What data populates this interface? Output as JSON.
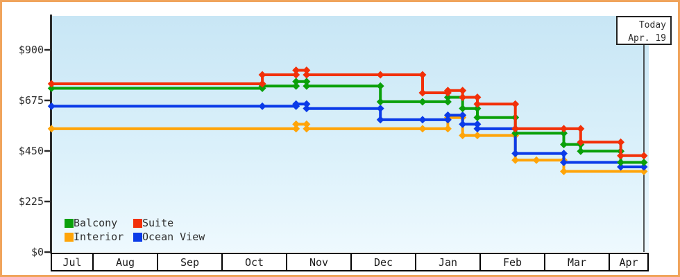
{
  "frame": {
    "border_color": "#f0a45c"
  },
  "today_box": {
    "title": "Today",
    "date": "Apr. 19"
  },
  "y_axis": {
    "tick_labels": [
      "$0",
      "$225",
      "$450",
      "$675",
      "$900"
    ],
    "tick_values": [
      0,
      225,
      450,
      675,
      900
    ]
  },
  "x_axis": {
    "months": [
      "Jul",
      "Aug",
      "Sep",
      "Oct",
      "Nov",
      "Dec",
      "Jan",
      "Feb",
      "Mar",
      "Apr"
    ]
  },
  "chart_data": {
    "type": "line",
    "step": true,
    "title": "",
    "xlabel": "",
    "ylabel": "",
    "currency": "$",
    "ylim": [
      0,
      1050
    ],
    "y_ticks": [
      0,
      225,
      450,
      675,
      900
    ],
    "x_range": [
      "Jul 12",
      "Apr 19"
    ],
    "today": "Apr 19",
    "grid": false,
    "legend_position": "bottom-left-inside",
    "marker": "diamond",
    "series": [
      {
        "name": "Balcony",
        "color": "#0aa00a",
        "points": [
          [
            "Jul 12",
            729
          ],
          [
            "Oct 20",
            739
          ],
          [
            "Nov 5",
            759
          ],
          [
            "Nov 10",
            739
          ],
          [
            "Dec 15",
            669
          ],
          [
            "Jan 4",
            669
          ],
          [
            "Jan 16",
            689
          ],
          [
            "Jan 23",
            639
          ],
          [
            "Jan 30",
            599
          ],
          [
            "Feb 17",
            529
          ],
          [
            "Mar 12",
            479
          ],
          [
            "Mar 20",
            449
          ],
          [
            "Apr 8",
            399
          ],
          [
            "Apr 19",
            399
          ]
        ]
      },
      {
        "name": "Suite",
        "color": "#f23008",
        "points": [
          [
            "Jul 12",
            749
          ],
          [
            "Oct 20",
            789
          ],
          [
            "Nov 5",
            809
          ],
          [
            "Nov 10",
            789
          ],
          [
            "Dec 15",
            789
          ],
          [
            "Jan 4",
            709
          ],
          [
            "Jan 16",
            719
          ],
          [
            "Jan 23",
            689
          ],
          [
            "Jan 30",
            659
          ],
          [
            "Feb 17",
            549
          ],
          [
            "Mar 12",
            549
          ],
          [
            "Mar 20",
            489
          ],
          [
            "Apr 8",
            429
          ],
          [
            "Apr 19",
            429
          ]
        ]
      },
      {
        "name": "Interior",
        "color": "#ffa408",
        "points": [
          [
            "Jul 12",
            549
          ],
          [
            "Nov 5",
            569
          ],
          [
            "Nov 10",
            549
          ],
          [
            "Jan 4",
            549
          ],
          [
            "Jan 16",
            599
          ],
          [
            "Jan 23",
            519
          ],
          [
            "Jan 30",
            519
          ],
          [
            "Feb 17",
            409
          ],
          [
            "Feb 27",
            409
          ],
          [
            "Mar 12",
            359
          ],
          [
            "Apr 19",
            359
          ]
        ]
      },
      {
        "name": "Ocean View",
        "color": "#0b3be8",
        "points": [
          [
            "Jul 12",
            649
          ],
          [
            "Oct 20",
            649
          ],
          [
            "Nov 5",
            659
          ],
          [
            "Nov 10",
            639
          ],
          [
            "Dec 15",
            589
          ],
          [
            "Jan 4",
            589
          ],
          [
            "Jan 16",
            609
          ],
          [
            "Jan 23",
            569
          ],
          [
            "Jan 30",
            549
          ],
          [
            "Feb 17",
            439
          ],
          [
            "Mar 12",
            399
          ],
          [
            "Apr 8",
            379
          ],
          [
            "Apr 19",
            379
          ]
        ]
      }
    ]
  }
}
